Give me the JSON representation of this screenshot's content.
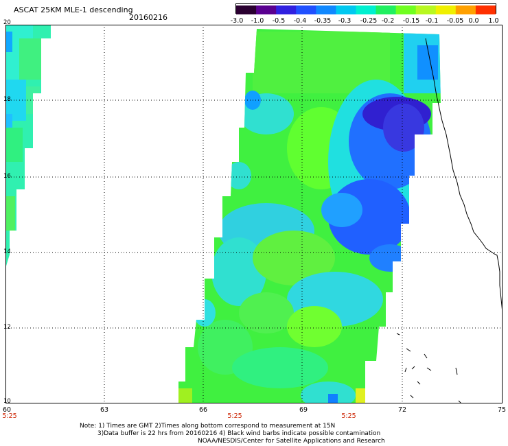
{
  "title": "ASCAT 25KM MLE-1 descending",
  "date": "20160216",
  "colorbar": {
    "labels": [
      "-3.0",
      "-1.0",
      "-0.5",
      "-0.4",
      "-0.35",
      "-0.3",
      "-0.25",
      "-0.2",
      "-0.15",
      "-0.1",
      "-0.05",
      "0.0",
      "1.0"
    ],
    "colors": [
      "#2a0030",
      "#5a0090",
      "#3020e0",
      "#2050ff",
      "#1088ff",
      "#00c8f0",
      "#00f0d0",
      "#20f060",
      "#70ff20",
      "#b8f820",
      "#f0f000",
      "#ffa000",
      "#ff3000"
    ]
  },
  "y_labels": [
    "20",
    "18",
    "16",
    "14",
    "12",
    "10"
  ],
  "x_labels": [
    "60",
    "63",
    "66",
    "69",
    "72",
    "75"
  ],
  "time_labels": [
    "5:25",
    "5:25",
    "5:25"
  ],
  "notes": [
    "Note: 1) Times are GMT 2)Times along bottom correspond to measurement at 15N",
    "3)Data buffer is 22 hrs from 20160216 4) Black wind barbs indicate possible contamination",
    "NOAA/NESDIS/Center for Satellite Applications and Research"
  ]
}
